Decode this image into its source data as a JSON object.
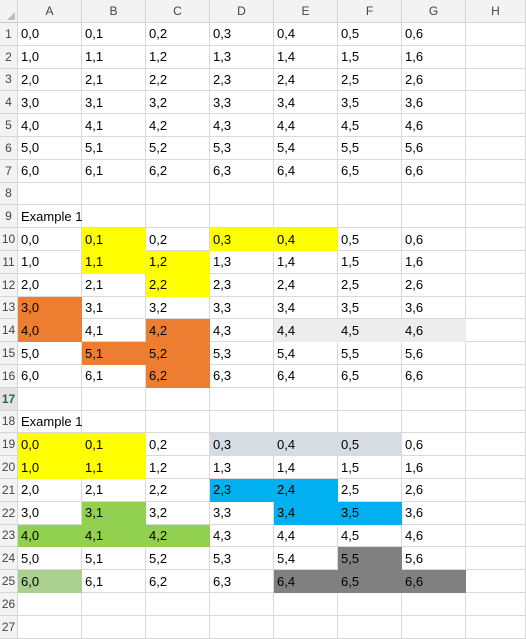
{
  "columns": [
    "A",
    "B",
    "C",
    "D",
    "E",
    "F",
    "G",
    "H"
  ],
  "rows": [
    {
      "num": "1",
      "cells": [
        "0,0",
        "0,1",
        "0,2",
        "0,3",
        "0,4",
        "0,5",
        "0,6",
        ""
      ]
    },
    {
      "num": "2",
      "cells": [
        "1,0",
        "1,1",
        "1,2",
        "1,3",
        "1,4",
        "1,5",
        "1,6",
        ""
      ]
    },
    {
      "num": "3",
      "cells": [
        "2,0",
        "2,1",
        "2,2",
        "2,3",
        "2,4",
        "2,5",
        "2,6",
        ""
      ]
    },
    {
      "num": "4",
      "cells": [
        "3,0",
        "3,1",
        "3,2",
        "3,3",
        "3,4",
        "3,5",
        "3,6",
        ""
      ]
    },
    {
      "num": "5",
      "cells": [
        "4,0",
        "4,1",
        "4,2",
        "4,3",
        "4,4",
        "4,5",
        "4,6",
        ""
      ]
    },
    {
      "num": "6",
      "cells": [
        "5,0",
        "5,1",
        "5,2",
        "5,3",
        "5,4",
        "5,5",
        "5,6",
        ""
      ]
    },
    {
      "num": "7",
      "cells": [
        "6,0",
        "6,1",
        "6,2",
        "6,3",
        "6,4",
        "6,5",
        "6,6",
        ""
      ]
    },
    {
      "num": "8",
      "cells": [
        "",
        "",
        "",
        "",
        "",
        "",
        "",
        ""
      ]
    },
    {
      "num": "9",
      "cells": [
        "Example 1",
        "",
        "",
        "",
        "",
        "",
        "",
        ""
      ]
    },
    {
      "num": "10",
      "cells": [
        "0,0",
        "0,1",
        "0,2",
        "0,3",
        "0,4",
        "0,5",
        "0,6",
        ""
      ],
      "fills": {
        "1": "#ffff00",
        "3": "#ffff00",
        "4": "#ffff00"
      }
    },
    {
      "num": "11",
      "cells": [
        "1,0",
        "1,1",
        "1,2",
        "1,3",
        "1,4",
        "1,5",
        "1,6",
        ""
      ],
      "fills": {
        "1": "#ffff00",
        "2": "#ffff00"
      }
    },
    {
      "num": "12",
      "cells": [
        "2,0",
        "2,1",
        "2,2",
        "2,3",
        "2,4",
        "2,5",
        "2,6",
        ""
      ],
      "fills": {
        "2": "#ffff00"
      }
    },
    {
      "num": "13",
      "cells": [
        "3,0",
        "3,1",
        "3,2",
        "3,3",
        "3,4",
        "3,5",
        "3,6",
        ""
      ],
      "fills": {
        "0": "#ed7d31"
      }
    },
    {
      "num": "14",
      "cells": [
        "4,0",
        "4,1",
        "4,2",
        "4,3",
        "4,4",
        "4,5",
        "4,6",
        ""
      ],
      "fills": {
        "0": "#ed7d31",
        "2": "#ed7d31",
        "4": "#ededed",
        "5": "#ededed",
        "6": "#ededed"
      }
    },
    {
      "num": "15",
      "cells": [
        "5,0",
        "5,1",
        "5,2",
        "5,3",
        "5,4",
        "5,5",
        "5,6",
        ""
      ],
      "fills": {
        "1": "#ed7d31",
        "2": "#ed7d31"
      }
    },
    {
      "num": "16",
      "cells": [
        "6,0",
        "6,1",
        "6,2",
        "6,3",
        "6,4",
        "6,5",
        "6,6",
        ""
      ],
      "fills": {
        "2": "#ed7d31"
      }
    },
    {
      "num": "17",
      "cells": [
        "",
        "",
        "",
        "",
        "",
        "",
        "",
        ""
      ],
      "selected": true
    },
    {
      "num": "18",
      "cells": [
        "Example 1",
        "",
        "",
        "",
        "",
        "",
        "",
        ""
      ]
    },
    {
      "num": "19",
      "cells": [
        "0,0",
        "0,1",
        "0,2",
        "0,3",
        "0,4",
        "0,5",
        "0,6",
        ""
      ],
      "fills": {
        "0": "#ffff00",
        "1": "#ffff00",
        "3": "#d6dce4",
        "4": "#d6dce4",
        "5": "#d6dce4"
      }
    },
    {
      "num": "20",
      "cells": [
        "1,0",
        "1,1",
        "1,2",
        "1,3",
        "1,4",
        "1,5",
        "1,6",
        ""
      ],
      "fills": {
        "0": "#ffff00",
        "1": "#ffff00"
      }
    },
    {
      "num": "21",
      "cells": [
        "2,0",
        "2,1",
        "2,2",
        "2,3",
        "2,4",
        "2,5",
        "2,6",
        ""
      ],
      "fills": {
        "3": "#00b0f0",
        "4": "#00b0f0"
      }
    },
    {
      "num": "22",
      "cells": [
        "3,0",
        "3,1",
        "3,2",
        "3,3",
        "3,4",
        "3,5",
        "3,6",
        ""
      ],
      "fills": {
        "1": "#92d050",
        "4": "#00b0f0",
        "5": "#00b0f0"
      }
    },
    {
      "num": "23",
      "cells": [
        "4,0",
        "4,1",
        "4,2",
        "4,3",
        "4,4",
        "4,5",
        "4,6",
        ""
      ],
      "fills": {
        "0": "#92d050",
        "1": "#92d050",
        "2": "#92d050"
      }
    },
    {
      "num": "24",
      "cells": [
        "5,0",
        "5,1",
        "5,2",
        "5,3",
        "5,4",
        "5,5",
        "5,6",
        ""
      ],
      "fills": {
        "5": "#808080"
      }
    },
    {
      "num": "25",
      "cells": [
        "6,0",
        "6,1",
        "6,2",
        "6,3",
        "6,4",
        "6,5",
        "6,6",
        ""
      ],
      "fills": {
        "0": "#a9d08e",
        "4": "#808080",
        "5": "#808080",
        "6": "#808080"
      }
    },
    {
      "num": "26",
      "cells": [
        "",
        "",
        "",
        "",
        "",
        "",
        "",
        ""
      ]
    },
    {
      "num": "27",
      "cells": [
        "",
        "",
        "",
        "",
        "",
        "",
        "",
        ""
      ]
    }
  ]
}
